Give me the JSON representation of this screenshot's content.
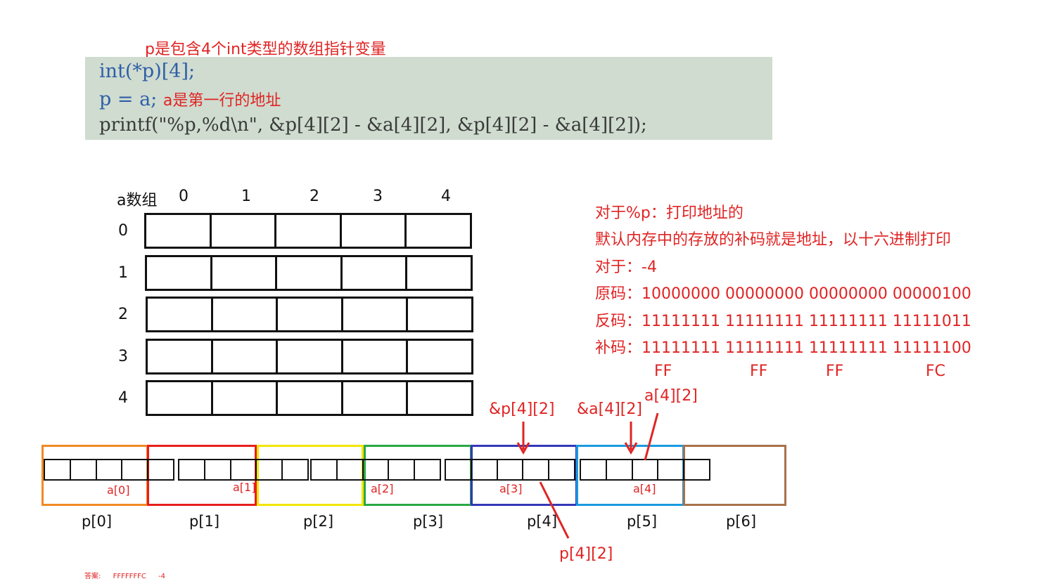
{
  "code": {
    "annotation_top": "p是包含4个int类型的数组指针变量",
    "line1": "int(*p)[4];",
    "line2_code": "p = a;",
    "line2_note": "a是第一行的地址",
    "line3": "printf(\"%p,%d\\n\", &p[4][2] - &a[4][2], &p[4][2] - &a[4][2]);"
  },
  "grid": {
    "title": "a数组",
    "col_headers": [
      "0",
      "1",
      "2",
      "3",
      "4"
    ],
    "row_headers": [
      "0",
      "1",
      "2",
      "3",
      "4"
    ]
  },
  "explanation": {
    "line1": "对于%p：打印地址的",
    "line2": "默认内存中的存放的补码就是地址，以十六进制打印",
    "line3": "对于：-4",
    "line4": "原码：10000000 00000000 00000000 00000100",
    "line5": "反码：11111111 11111111 11111111 11111011",
    "line6": "补码：11111111 11111111 11111111 11111100",
    "hex": [
      "FF",
      "FF",
      "FF",
      "FC"
    ]
  },
  "memory": {
    "p_labels": [
      "p[0]",
      "p[1]",
      "p[2]",
      "p[3]",
      "p[4]",
      "p[5]",
      "p[6]"
    ],
    "p_colors": [
      "#f08a24",
      "#e81e1e",
      "#f2e600",
      "#2aa845",
      "#3337b8",
      "#1a9ae0",
      "#a8714a"
    ],
    "a_labels": [
      "a[0]",
      "a[1]",
      "a[2]",
      "a[3]",
      "a[4]"
    ],
    "pointer_labels": {
      "p42_addr": "&p[4][2]",
      "a42_addr": "&a[4][2]",
      "a42": "a[4][2]",
      "p42": "p[4][2]"
    }
  },
  "footer": {
    "answer_label": "答案:",
    "answer_hex": "FFFFFFFC",
    "answer_dec": "-4"
  }
}
